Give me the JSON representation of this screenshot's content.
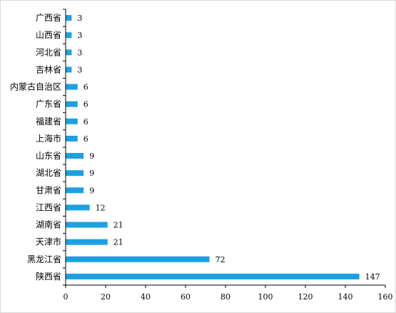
{
  "chart_data": {
    "type": "bar",
    "orientation": "horizontal",
    "title": "",
    "xlabel": "",
    "ylabel": "",
    "categories": [
      "陕西省",
      "黑龙江省",
      "天津市",
      "湖南省",
      "江西省",
      "甘肃省",
      "湖北省",
      "山东省",
      "上海市",
      "福建省",
      "广东省",
      "内蒙古自治区",
      "吉林省",
      "河北省",
      "山西省",
      "广西省"
    ],
    "values": [
      147,
      72,
      21,
      21,
      12,
      9,
      9,
      9,
      6,
      6,
      6,
      6,
      3,
      3,
      3,
      3
    ],
    "data_labels": [
      "147",
      "72",
      "21",
      "21",
      "12",
      "9",
      "9",
      "9",
      "6",
      "6",
      "6",
      "6",
      "3",
      "3",
      "3",
      "3"
    ],
    "xlim": [
      0,
      160
    ],
    "xticks": [
      "0",
      "20",
      "40",
      "60",
      "80",
      "100",
      "120",
      "140",
      "160"
    ],
    "grid": false,
    "legend": "none",
    "bar_color": "#1ba1e2"
  }
}
